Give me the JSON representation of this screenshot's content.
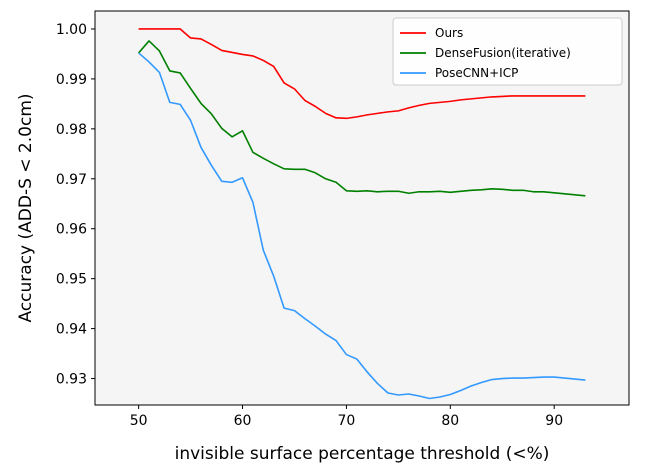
{
  "chart_data": {
    "type": "line",
    "title": "",
    "xlabel": "invisible surface percentage threshold (<%)",
    "ylabel": "Accuracy (ADD-S < 2.0cm)",
    "xlim": [
      45.8,
      97.2
    ],
    "ylim": [
      0.9247,
      1.0036
    ],
    "xticks": [
      50,
      60,
      70,
      80,
      90
    ],
    "yticks": [
      0.93,
      0.94,
      0.95,
      0.96,
      0.97,
      0.98,
      0.99,
      1.0
    ],
    "xtick_labels": [
      "50",
      "60",
      "70",
      "80",
      "90"
    ],
    "ytick_labels": [
      "0.93",
      "0.94",
      "0.95",
      "0.96",
      "0.97",
      "0.98",
      "0.99",
      "1.00"
    ],
    "grid": false,
    "legend_position": "top-right",
    "x": [
      50,
      51,
      52,
      53,
      54,
      55,
      56,
      57,
      58,
      59,
      60,
      61,
      62,
      63,
      64,
      65,
      66,
      67,
      68,
      69,
      70,
      71,
      72,
      73,
      74,
      75,
      76,
      77,
      78,
      79,
      80,
      81,
      82,
      83,
      84,
      85,
      86,
      87,
      88,
      89,
      90,
      91,
      92,
      93
    ],
    "series": [
      {
        "name": "Ours",
        "color": "#ff0000",
        "values": [
          1.0,
          1.0,
          1.0,
          1.0,
          1.0,
          0.9982,
          0.998,
          0.9969,
          0.9957,
          0.9953,
          0.9949,
          0.9946,
          0.9937,
          0.9925,
          0.9892,
          0.988,
          0.9857,
          0.9845,
          0.9831,
          0.9822,
          0.9821,
          0.9824,
          0.9828,
          0.9831,
          0.9834,
          0.9836,
          0.9842,
          0.9847,
          0.9851,
          0.9853,
          0.9855,
          0.9858,
          0.986,
          0.9862,
          0.9864,
          0.9865,
          0.9866,
          0.9866,
          0.9866,
          0.9866,
          0.9866,
          0.9866,
          0.9866,
          0.9866
        ]
      },
      {
        "name": "DenseFusion(iterative)",
        "color": "#008000",
        "values": [
          0.9952,
          0.9976,
          0.9956,
          0.9916,
          0.9912,
          0.9881,
          0.9851,
          0.983,
          0.9801,
          0.9784,
          0.9796,
          0.9753,
          0.9741,
          0.973,
          0.972,
          0.9719,
          0.9719,
          0.9712,
          0.97,
          0.9693,
          0.9676,
          0.9675,
          0.9676,
          0.9674,
          0.9675,
          0.9675,
          0.9671,
          0.9674,
          0.9674,
          0.9675,
          0.9673,
          0.9675,
          0.9677,
          0.9678,
          0.968,
          0.9679,
          0.9677,
          0.9677,
          0.9674,
          0.9674,
          0.9672,
          0.967,
          0.9668,
          0.9666
        ]
      },
      {
        "name": "PoseCNN+ICP",
        "color": "#3399ff",
        "values": [
          0.9952,
          0.9934,
          0.9913,
          0.9853,
          0.9849,
          0.9817,
          0.9763,
          0.9727,
          0.9695,
          0.9693,
          0.9702,
          0.9653,
          0.9557,
          0.9505,
          0.9441,
          0.9436,
          0.942,
          0.9405,
          0.9389,
          0.9376,
          0.9348,
          0.9339,
          0.9313,
          0.929,
          0.9271,
          0.9267,
          0.9269,
          0.9265,
          0.926,
          0.9263,
          0.9268,
          0.9276,
          0.9285,
          0.9292,
          0.9298,
          0.93,
          0.9301,
          0.9301,
          0.9302,
          0.9303,
          0.9303,
          0.9301,
          0.9299,
          0.9297
        ]
      }
    ]
  }
}
